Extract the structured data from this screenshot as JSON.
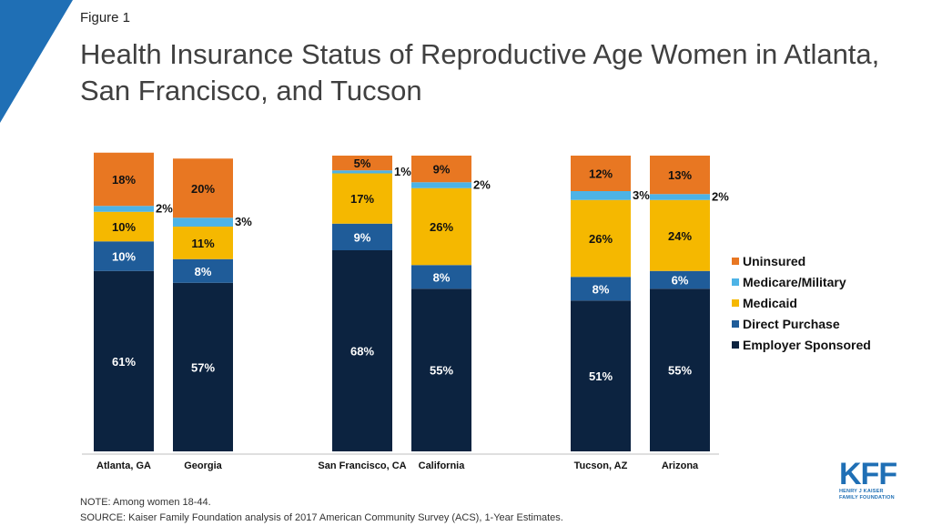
{
  "figure_label": "Figure 1",
  "title": "Health Insurance Status of Reproductive Age Women in Atlanta, San Francisco, and Tucson",
  "note": "NOTE: Among women 18-44.",
  "source": "SOURCE: Kaiser Family Foundation analysis of 2017 American Community Survey (ACS), 1-Year Estimates.",
  "logo": {
    "mark": "KFF",
    "line1": "HENRY J KAISER",
    "line2": "FAMILY FOUNDATION"
  },
  "colors": {
    "Employer Sponsored": "#0c2340",
    "Direct Purchase": "#1f5c99",
    "Medicaid": "#f5b800",
    "Medicare/Military": "#4db3e6",
    "Uninsured": "#e87722"
  },
  "chart_data": {
    "type": "bar",
    "stacked": true,
    "ylim": [
      0,
      100
    ],
    "categories": [
      "Atlanta, GA",
      "Georgia",
      "San Francisco, CA",
      "California",
      "Tucson, AZ",
      "Arizona"
    ],
    "series": [
      {
        "name": "Employer Sponsored",
        "values": [
          61,
          57,
          68,
          55,
          51,
          55
        ]
      },
      {
        "name": "Direct Purchase",
        "values": [
          10,
          8,
          9,
          8,
          8,
          6
        ]
      },
      {
        "name": "Medicaid",
        "values": [
          10,
          11,
          17,
          26,
          26,
          24
        ]
      },
      {
        "name": "Medicare/Military",
        "values": [
          2,
          3,
          1,
          2,
          3,
          2
        ]
      },
      {
        "name": "Uninsured",
        "values": [
          18,
          20,
          5,
          9,
          12,
          13
        ]
      }
    ],
    "data_labels": [
      [
        "61%",
        "57%",
        "68%",
        "55%",
        "51%",
        "55%"
      ],
      [
        "10%",
        "8%",
        "9%",
        "8%",
        "8%",
        "6%"
      ],
      [
        "10%",
        "11%",
        "17%",
        "26%",
        "26%",
        "24%"
      ],
      [
        "2%",
        "3%",
        "1%",
        "2%",
        "3%",
        "2%"
      ],
      [
        "18%",
        "20%",
        "5%",
        "9%",
        "12%",
        "13%"
      ]
    ],
    "legend_order": [
      "Uninsured",
      "Medicare/Military",
      "Medicaid",
      "Direct Purchase",
      "Employer Sponsored"
    ],
    "legend_position": "right",
    "grid": false
  }
}
